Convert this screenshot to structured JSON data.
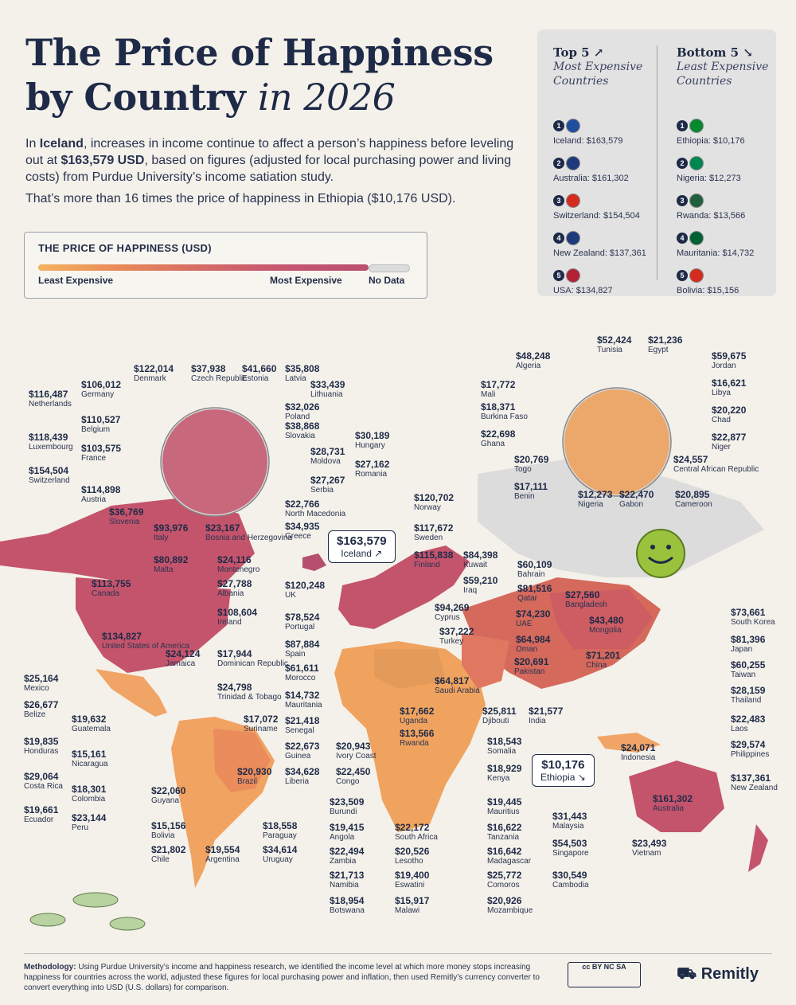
{
  "title": {
    "line1": "The Price of Happiness",
    "line2": "by Country",
    "line2_ital": "in 2026"
  },
  "intro": {
    "p1_a": "In ",
    "p1_b": "Iceland",
    "p1_c": ", increases in income continue to affect a person’s happiness before leveling out at ",
    "p1_d": "$163,579 USD",
    "p1_e": ", based on figures (adjusted for local purchasing power and living costs) from Purdue University’s income satiation study.",
    "p2": "That’s more than 16 times the price of happiness in Ethiopia ($10,176 USD)."
  },
  "legend": {
    "title": "THE PRICE OF HAPPINESS (USD)",
    "least": "Least Expensive",
    "most": "Most Expensive",
    "nodata": "No Data"
  },
  "top5": {
    "title": "Top 5",
    "arrow": "↗",
    "subtitle1": "Most Expensive",
    "subtitle2": "Countries",
    "items": [
      {
        "rank": "1",
        "label": "Iceland: $163,579",
        "flag": "#1f4e9c"
      },
      {
        "rank": "2",
        "label": "Australia: $161,302",
        "flag": "#1f3a7a"
      },
      {
        "rank": "3",
        "label": "Switzerland: $154,504",
        "flag": "#d52b1e"
      },
      {
        "rank": "4",
        "label": "New Zealand: $137,361",
        "flag": "#1f3a7a"
      },
      {
        "rank": "5",
        "label": "USA: $134,827",
        "flag": "#b22234"
      }
    ]
  },
  "bottom5": {
    "title": "Bottom 5",
    "arrow": "↘",
    "subtitle1": "Least Expensive",
    "subtitle2": "Countries",
    "items": [
      {
        "rank": "1",
        "label": "Ethiopia: $10,176",
        "flag": "#078930"
      },
      {
        "rank": "2",
        "label": "Nigeria: $12,273",
        "flag": "#008751"
      },
      {
        "rank": "3",
        "label": "Rwanda: $13,566",
        "flag": "#20603d"
      },
      {
        "rank": "4",
        "label": "Mauritania: $14,732",
        "flag": "#006233"
      },
      {
        "rank": "5",
        "label": "Bolivia: $15,156",
        "flag": "#d52b1e"
      }
    ]
  },
  "callouts": {
    "iceland": {
      "v": "$163,579",
      "n": "Iceland ↗"
    },
    "ethiopia": {
      "v": "$10,176",
      "n": "Ethiopia ↘"
    }
  },
  "labels": [
    {
      "v": "$116,487",
      "n": "Netherlands"
    },
    {
      "v": "$106,012",
      "n": "Germany"
    },
    {
      "v": "$122,014",
      "n": "Denmark"
    },
    {
      "v": "$37,938",
      "n": "Czech Republic"
    },
    {
      "v": "$41,660",
      "n": "Estonia"
    },
    {
      "v": "$35,808",
      "n": "Latvia"
    },
    {
      "v": "$33,439",
      "n": "Lithuania"
    },
    {
      "v": "$110,527",
      "n": "Belgium"
    },
    {
      "v": "$32,026",
      "n": "Poland"
    },
    {
      "v": "$118,439",
      "n": "Luxembourg"
    },
    {
      "v": "$38,868",
      "n": "Slovakia"
    },
    {
      "v": "$30,189",
      "n": "Hungary"
    },
    {
      "v": "$103,575",
      "n": "France"
    },
    {
      "v": "$28,731",
      "n": "Moldova"
    },
    {
      "v": "$27,162",
      "n": "Romania"
    },
    {
      "v": "$154,504",
      "n": "Switzerland"
    },
    {
      "v": "$27,267",
      "n": "Serbia"
    },
    {
      "v": "$114,898",
      "n": "Austria"
    },
    {
      "v": "$22,766",
      "n": "North Macedonia"
    },
    {
      "v": "$36,769",
      "n": "Slovenia"
    },
    {
      "v": "$34,935",
      "n": "Greece"
    },
    {
      "v": "$93,976",
      "n": "Italy"
    },
    {
      "v": "$23,167",
      "n": "Bosnia and Herzegovina"
    },
    {
      "v": "$80,892",
      "n": "Malta"
    },
    {
      "v": "$24,116",
      "n": "Montenegro"
    },
    {
      "v": "$113,755",
      "n": "Canada"
    },
    {
      "v": "$27,788",
      "n": "Albania"
    },
    {
      "v": "$120,248",
      "n": "UK"
    },
    {
      "v": "$108,604",
      "n": "Ireland"
    },
    {
      "v": "$78,524",
      "n": "Portugal"
    },
    {
      "v": "$134,827",
      "n": "United States of America"
    },
    {
      "v": "$87,884",
      "n": "Spain"
    },
    {
      "v": "$24,124",
      "n": "Jamaica"
    },
    {
      "v": "$17,944",
      "n": "Dominican Republic"
    },
    {
      "v": "$61,611",
      "n": "Morocco"
    },
    {
      "v": "$25,164",
      "n": "Mexico"
    },
    {
      "v": "$24,798",
      "n": "Trinidad & Tobago"
    },
    {
      "v": "$14,732",
      "n": "Mauritania"
    },
    {
      "v": "$26,677",
      "n": "Belize"
    },
    {
      "v": "$19,632",
      "n": "Guatemala"
    },
    {
      "v": "$17,072",
      "n": "Suriname"
    },
    {
      "v": "$21,418",
      "n": "Senegal"
    },
    {
      "v": "$19,835",
      "n": "Honduras"
    },
    {
      "v": "$22,673",
      "n": "Guinea"
    },
    {
      "v": "$15,161",
      "n": "Nicaragua"
    },
    {
      "v": "$29,064",
      "n": "Costa Rica"
    },
    {
      "v": "$20,930",
      "n": "Brazil"
    },
    {
      "v": "$34,628",
      "n": "Liberia"
    },
    {
      "v": "$18,301",
      "n": "Colombia"
    },
    {
      "v": "$22,060",
      "n": "Guyana"
    },
    {
      "v": "$19,661",
      "n": "Ecuador"
    },
    {
      "v": "$23,144",
      "n": "Peru"
    },
    {
      "v": "$18,558",
      "n": "Paraguay"
    },
    {
      "v": "$15,156",
      "n": "Bolivia"
    },
    {
      "v": "$21,802",
      "n": "Chile"
    },
    {
      "v": "$19,554",
      "n": "Argentina"
    },
    {
      "v": "$34,614",
      "n": "Uruguay"
    },
    {
      "v": "$120,702",
      "n": "Norway"
    },
    {
      "v": "$117,672",
      "n": "Sweden"
    },
    {
      "v": "$115,838",
      "n": "Finland"
    },
    {
      "v": "$84,398",
      "n": "Kuwait"
    },
    {
      "v": "$60,109",
      "n": "Bahrain"
    },
    {
      "v": "$59,210",
      "n": "Iraq"
    },
    {
      "v": "$81,516",
      "n": "Qatar"
    },
    {
      "v": "$94,269",
      "n": "Cyprus"
    },
    {
      "v": "$74,230",
      "n": "UAE"
    },
    {
      "v": "$37,222",
      "n": "Turkey"
    },
    {
      "v": "$64,984",
      "n": "Oman"
    },
    {
      "v": "$20,691",
      "n": "Pakistan"
    },
    {
      "v": "$64,817",
      "n": "Saudi Arabia"
    },
    {
      "v": "$17,662",
      "n": "Uganda"
    },
    {
      "v": "$25,811",
      "n": "Djibouti"
    },
    {
      "v": "$21,577",
      "n": "India"
    },
    {
      "v": "$20,943",
      "n": "Ivory Coast"
    },
    {
      "v": "$13,566",
      "n": "Rwanda"
    },
    {
      "v": "$18,543",
      "n": "Somalia"
    },
    {
      "v": "$22,450",
      "n": "Congo"
    },
    {
      "v": "$18,929",
      "n": "Kenya"
    },
    {
      "v": "$23,509",
      "n": "Burundi"
    },
    {
      "v": "$19,445",
      "n": "Mauritius"
    },
    {
      "v": "$19,415",
      "n": "Angola"
    },
    {
      "v": "$22,172",
      "n": "South Africa"
    },
    {
      "v": "$16,622",
      "n": "Tanzania"
    },
    {
      "v": "$22,494",
      "n": "Zambia"
    },
    {
      "v": "$20,526",
      "n": "Lesotho"
    },
    {
      "v": "$16,642",
      "n": "Madagascar"
    },
    {
      "v": "$21,713",
      "n": "Namibia"
    },
    {
      "v": "$19,400",
      "n": "Eswatini"
    },
    {
      "v": "$25,772",
      "n": "Comoros"
    },
    {
      "v": "$18,954",
      "n": "Botswana"
    },
    {
      "v": "$15,917",
      "n": "Malawi"
    },
    {
      "v": "$20,926",
      "n": "Mozambique"
    },
    {
      "v": "$27,560",
      "n": "Bangladesh"
    },
    {
      "v": "$43,480",
      "n": "Mongolia"
    },
    {
      "v": "$71,201",
      "n": "China"
    },
    {
      "v": "$24,071",
      "n": "Indonesia"
    },
    {
      "v": "$73,661",
      "n": "South Korea"
    },
    {
      "v": "$81,396",
      "n": "Japan"
    },
    {
      "v": "$60,255",
      "n": "Taiwan"
    },
    {
      "v": "$28,159",
      "n": "Thailand"
    },
    {
      "v": "$22,483",
      "n": "Laos"
    },
    {
      "v": "$29,574",
      "n": "Philippines"
    },
    {
      "v": "$137,361",
      "n": "New Zealand"
    },
    {
      "v": "$161,302",
      "n": "Australia"
    },
    {
      "v": "$31,443",
      "n": "Malaysia"
    },
    {
      "v": "$54,503",
      "n": "Singapore"
    },
    {
      "v": "$23,493",
      "n": "Vietnam"
    },
    {
      "v": "$30,549",
      "n": "Cambodia"
    },
    {
      "v": "$52,424",
      "n": "Tunisia"
    },
    {
      "v": "$21,236",
      "n": "Egypt"
    },
    {
      "v": "$48,248",
      "n": "Algeria"
    },
    {
      "v": "$59,675",
      "n": "Jordan"
    },
    {
      "v": "$17,772",
      "n": "Mali"
    },
    {
      "v": "$16,621",
      "n": "Libya"
    },
    {
      "v": "$18,371",
      "n": "Burkina Faso"
    },
    {
      "v": "$20,220",
      "n": "Chad"
    },
    {
      "v": "$22,698",
      "n": "Ghana"
    },
    {
      "v": "$22,877",
      "n": "Niger"
    },
    {
      "v": "$20,769",
      "n": "Togo"
    },
    {
      "v": "$24,557",
      "n": "Central African Republic"
    },
    {
      "v": "$17,111",
      "n": "Benin"
    },
    {
      "v": "$12,273",
      "n": "Nigeria"
    },
    {
      "v": "$22,470",
      "n": "Gabon"
    },
    {
      "v": "$20,895",
      "n": "Cameroon"
    }
  ],
  "footer": {
    "method_bold": "Methodology:",
    "method": " Using Purdue University’s income and happiness research, we identified the income level at which more money stops increasing happiness for countries across the world, adjusted these figures for local purchasing power and inflation, then used Remitly’s currency converter to convert everything into USD (U.S. dollars) for comparison.",
    "license": "cc BY NC SA",
    "brand": "Remitly"
  }
}
